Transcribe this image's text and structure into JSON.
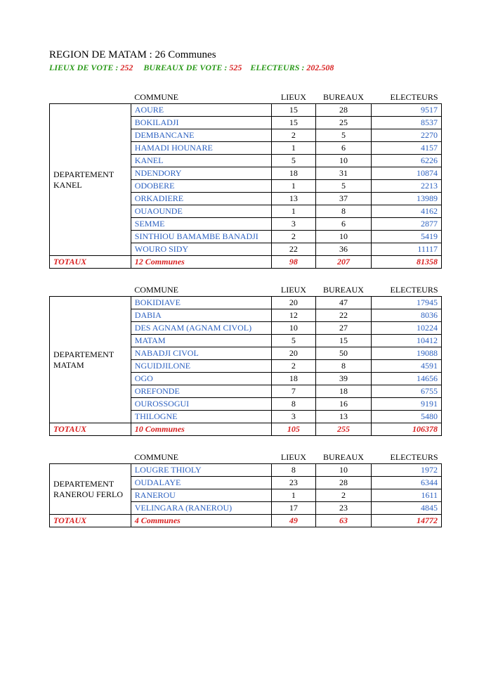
{
  "title": {
    "prefix": "REGION DE MATAM : ",
    "communes_count": "26 Communes"
  },
  "subtitle": {
    "lieux_label": "LIEUX DE VOTE : ",
    "lieux_value": "252",
    "bureaux_label": "BUREAUX DE VOTE : ",
    "bureaux_value": "525",
    "electeurs_label": "ELECTEURS : ",
    "electeurs_value": "202.508"
  },
  "headers": {
    "commune": "COMMUNE",
    "lieux": "LIEUX",
    "bureaux": "BUREAUX",
    "electeurs": "ELECTEURS"
  },
  "totaux_label": "TOTAUX",
  "blocks": [
    {
      "dept": "DEPARTEMENT KANEL",
      "rows": [
        {
          "commune": "AOURE",
          "lieux": "15",
          "bureaux": "28",
          "electeurs": "9517"
        },
        {
          "commune": "BOKILADJI",
          "lieux": "15",
          "bureaux": "25",
          "electeurs": "8537"
        },
        {
          "commune": "DEMBANCANE",
          "lieux": "2",
          "bureaux": "5",
          "electeurs": "2270"
        },
        {
          "commune": "HAMADI HOUNARE",
          "lieux": "1",
          "bureaux": "6",
          "electeurs": "4157"
        },
        {
          "commune": "KANEL",
          "lieux": "5",
          "bureaux": "10",
          "electeurs": "6226"
        },
        {
          "commune": "NDENDORY",
          "lieux": "18",
          "bureaux": "31",
          "electeurs": "10874"
        },
        {
          "commune": "ODOBERE",
          "lieux": "1",
          "bureaux": "5",
          "electeurs": "2213"
        },
        {
          "commune": "ORKADIERE",
          "lieux": "13",
          "bureaux": "37",
          "electeurs": "13989"
        },
        {
          "commune": "OUAOUNDE",
          "lieux": "1",
          "bureaux": "8",
          "electeurs": "4162"
        },
        {
          "commune": "SEMME",
          "lieux": "3",
          "bureaux": "6",
          "electeurs": "2877"
        },
        {
          "commune": "SINTHIOU BAMAMBE BANADJI",
          "lieux": "2",
          "bureaux": "10",
          "electeurs": "5419"
        },
        {
          "commune": "WOURO SIDY",
          "lieux": "22",
          "bureaux": "36",
          "electeurs": "11117"
        }
      ],
      "totaux": {
        "communes": "12 Communes",
        "lieux": "98",
        "bureaux": "207",
        "electeurs": "81358"
      }
    },
    {
      "dept": "DEPARTEMENT MATAM",
      "rows": [
        {
          "commune": "BOKIDIAVE",
          "lieux": "20",
          "bureaux": "47",
          "electeurs": "17945"
        },
        {
          "commune": "DABIA",
          "lieux": "12",
          "bureaux": "22",
          "electeurs": "8036"
        },
        {
          "commune": "DES AGNAM (AGNAM CIVOL)",
          "lieux": "10",
          "bureaux": "27",
          "electeurs": "10224"
        },
        {
          "commune": "MATAM",
          "lieux": "5",
          "bureaux": "15",
          "electeurs": "10412"
        },
        {
          "commune": "NABADJI CIVOL",
          "lieux": "20",
          "bureaux": "50",
          "electeurs": "19088"
        },
        {
          "commune": "NGUIDJILONE",
          "lieux": "2",
          "bureaux": "8",
          "electeurs": "4591"
        },
        {
          "commune": "OGO",
          "lieux": "18",
          "bureaux": "39",
          "electeurs": "14656"
        },
        {
          "commune": "OREFONDE",
          "lieux": "7",
          "bureaux": "18",
          "electeurs": "6755"
        },
        {
          "commune": "OUROSSOGUI",
          "lieux": "8",
          "bureaux": "16",
          "electeurs": "9191"
        },
        {
          "commune": "THILOGNE",
          "lieux": "3",
          "bureaux": "13",
          "electeurs": "5480"
        }
      ],
      "totaux": {
        "communes": "10 Communes",
        "lieux": "105",
        "bureaux": "255",
        "electeurs": "106378"
      }
    },
    {
      "dept": "DEPARTEMENT RANEROU FERLO",
      "rows": [
        {
          "commune": "LOUGRE THIOLY",
          "lieux": "8",
          "bureaux": "10",
          "electeurs": "1972"
        },
        {
          "commune": "OUDALAYE",
          "lieux": "23",
          "bureaux": "28",
          "electeurs": "6344"
        },
        {
          "commune": "RANEROU",
          "lieux": "1",
          "bureaux": "2",
          "electeurs": "1611"
        },
        {
          "commune": "VELINGARA  (RANEROU)",
          "lieux": "17",
          "bureaux": "23",
          "electeurs": "4845"
        }
      ],
      "totaux": {
        "communes": "4 Communes",
        "lieux": "49",
        "bureaux": "63",
        "electeurs": "14772"
      }
    }
  ]
}
